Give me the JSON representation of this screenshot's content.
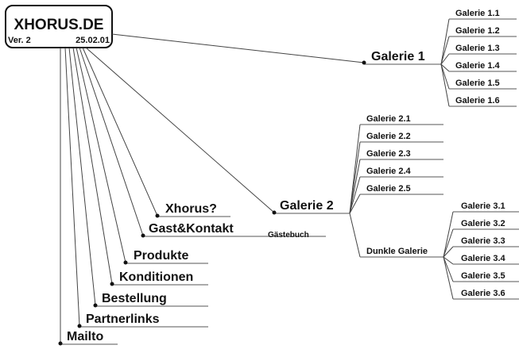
{
  "root": {
    "title": "XHORUS.DE",
    "version": "Ver. 2",
    "date": "25.02.01"
  },
  "galerie1": {
    "label": "Galerie 1",
    "children": [
      "Galerie 1.1",
      "Galerie 1.2",
      "Galerie 1.3",
      "Galerie 1.4",
      "Galerie 1.5",
      "Galerie 1.6"
    ]
  },
  "galerie2": {
    "label": "Galerie 2",
    "children": [
      "Galerie 2.1",
      "Galerie 2.2",
      "Galerie 2.3",
      "Galerie 2.4",
      "Galerie 2.5"
    ]
  },
  "dunkle": {
    "label": "Dunkle Galerie",
    "children": [
      "Galerie 3.1",
      "Galerie 3.2",
      "Galerie 3.3",
      "Galerie 3.4",
      "Galerie 3.5",
      "Galerie 3.6"
    ]
  },
  "left_items": [
    "Xhorus?",
    "Gast&Kontakt",
    "Produkte",
    "Konditionen",
    "Bestellung",
    "Partnerlinks",
    "Mailto"
  ],
  "guestbook": "Gästebuch"
}
